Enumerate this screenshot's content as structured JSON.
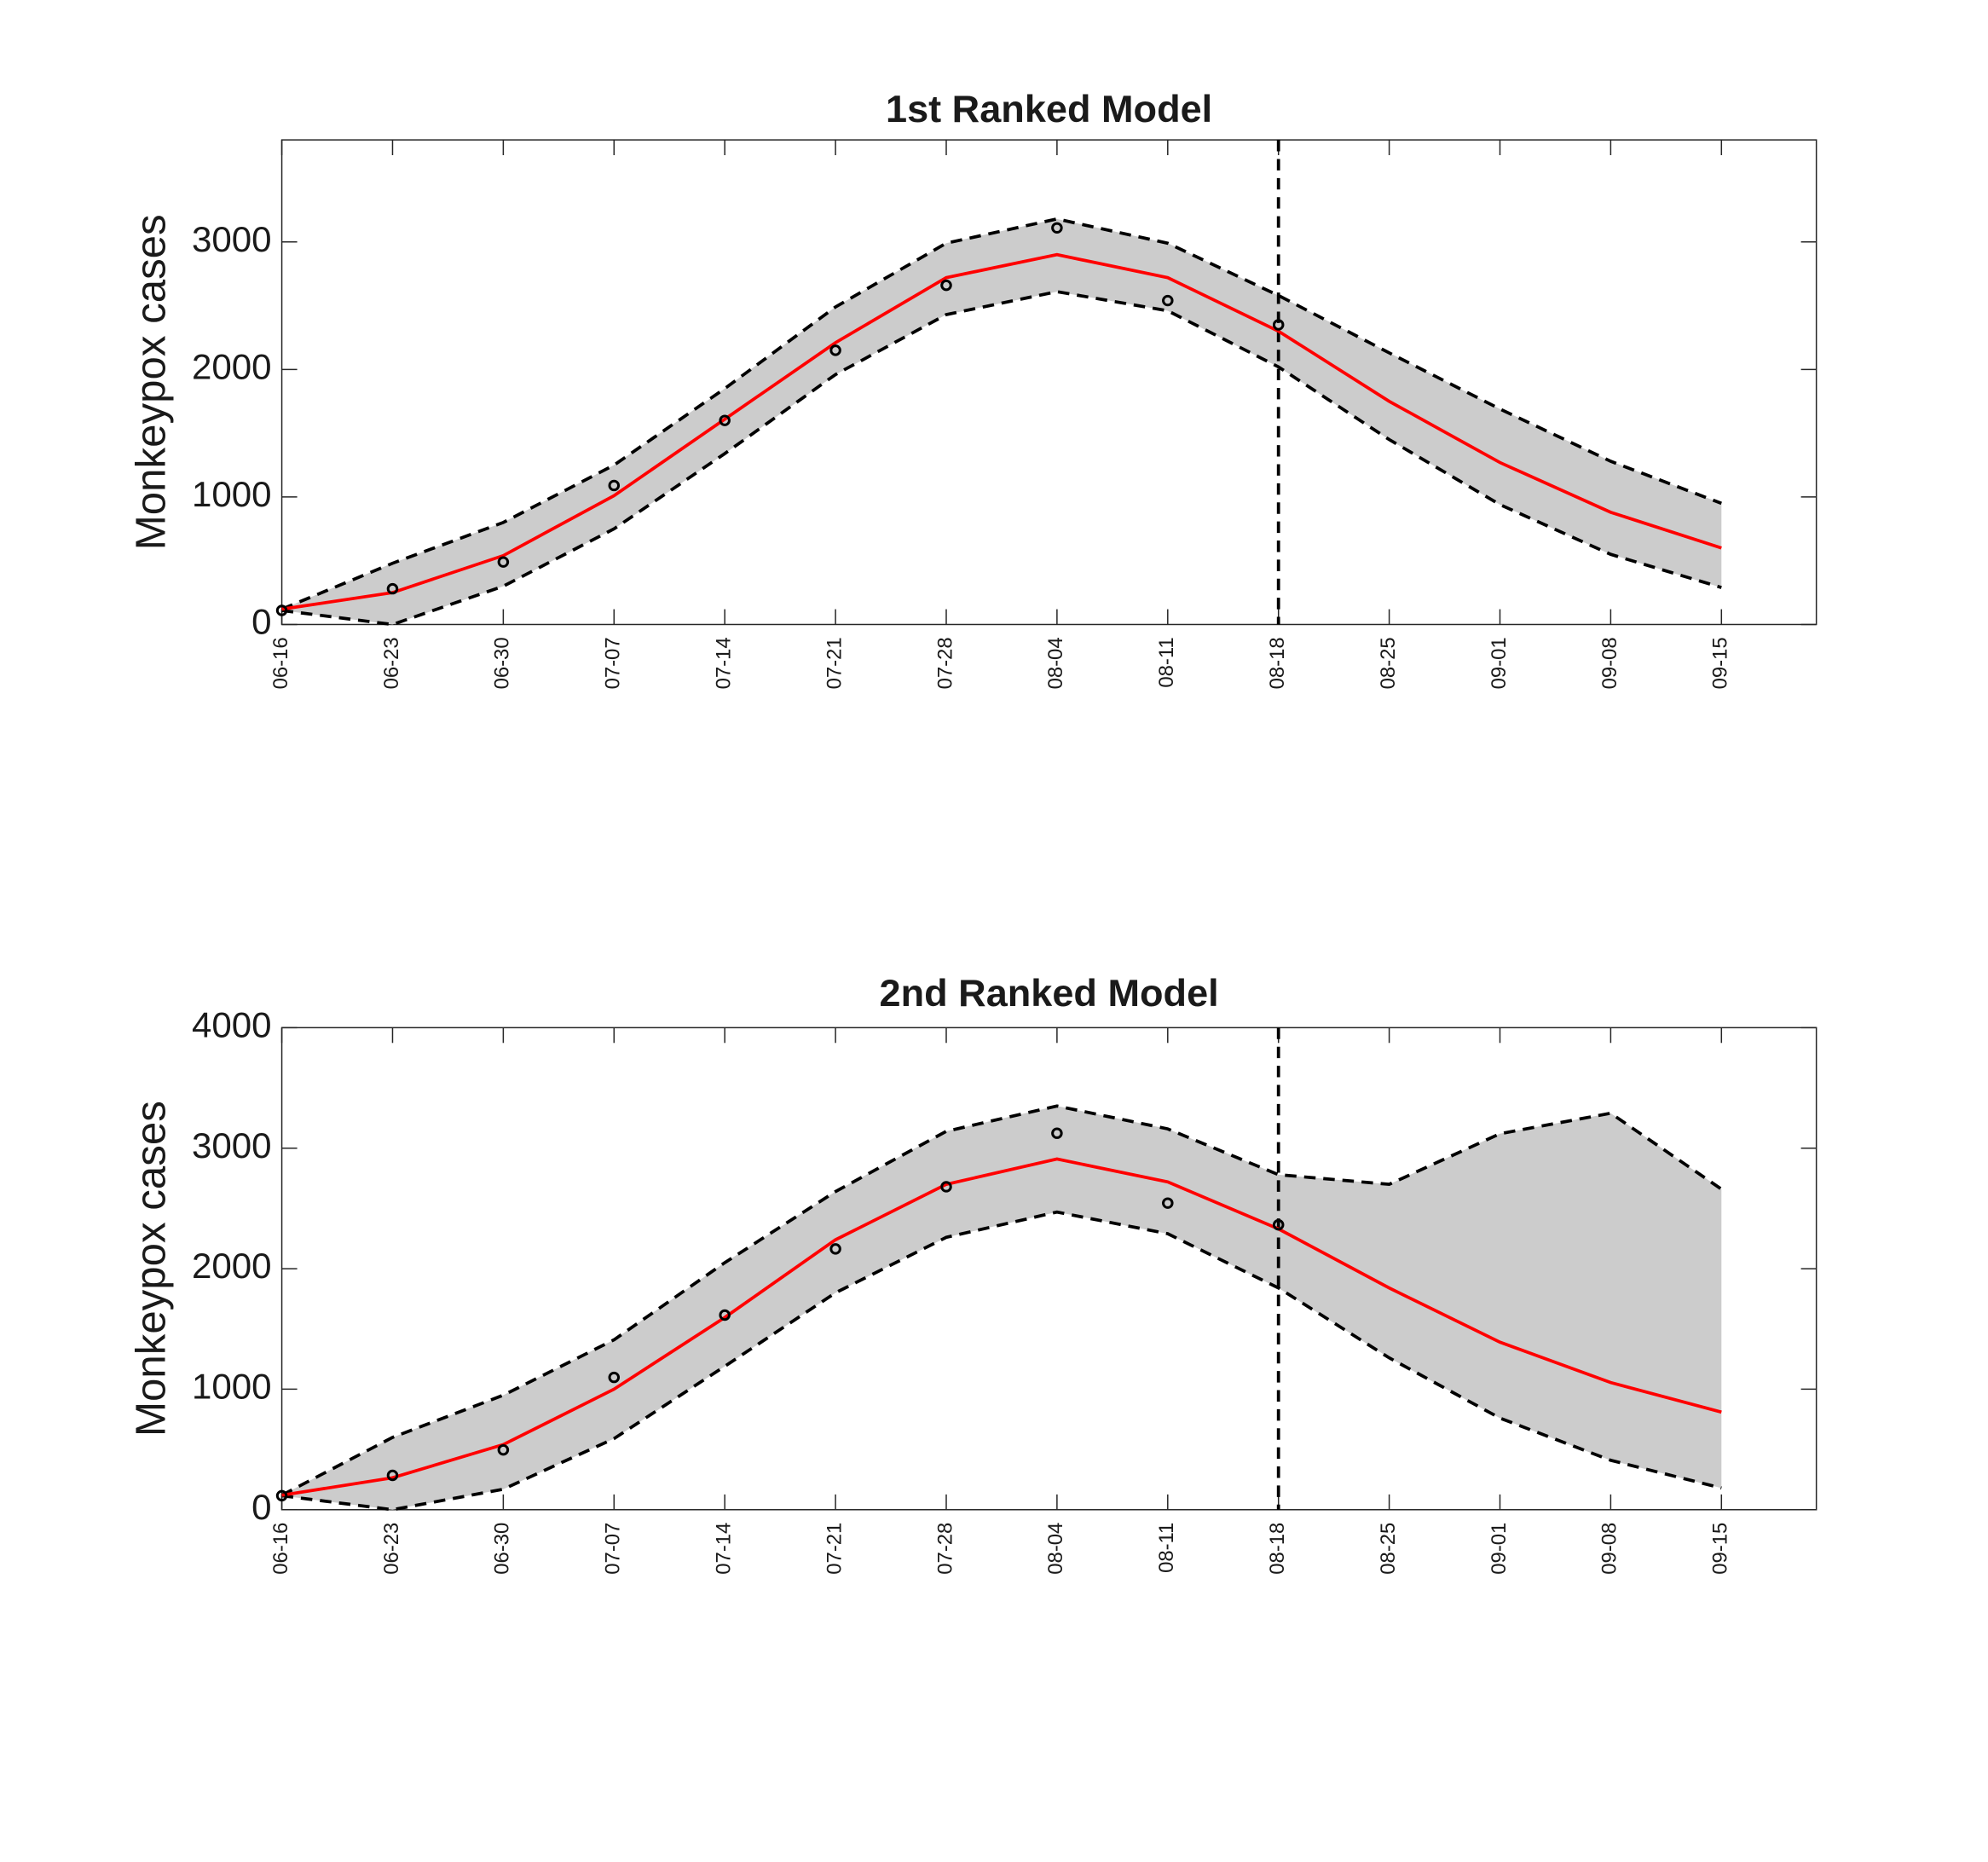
{
  "chart_data": [
    {
      "type": "line",
      "title": "1st Ranked Model",
      "y_label": "Monkeypox cases",
      "x": [
        "06-16",
        "06-23",
        "06-30",
        "07-07",
        "07-14",
        "07-21",
        "07-28",
        "08-04",
        "08-11",
        "08-18",
        "08-25",
        "09-01",
        "09-08",
        "09-15"
      ],
      "xlim": [
        "06-16",
        "09-21"
      ],
      "observed": [
        110,
        280,
        490,
        1090,
        1600,
        2150,
        2660,
        3110,
        2540,
        2350,
        null,
        null,
        null,
        null
      ],
      "fit": [
        120,
        250,
        540,
        1010,
        1610,
        2210,
        2720,
        2900,
        2720,
        2300,
        1750,
        1270,
        880,
        600
      ],
      "upper": [
        120,
        480,
        800,
        1250,
        1850,
        2490,
        2990,
        3180,
        2990,
        2580,
        2130,
        1690,
        1280,
        950
      ],
      "lower": [
        110,
        0,
        300,
        750,
        1340,
        1960,
        2430,
        2610,
        2460,
        2020,
        1450,
        940,
        550,
        290
      ],
      "fit_color": "#ff0000",
      "band_color": "#cccccc",
      "observed_color": "#000000",
      "vline": "08-18",
      "ylim": [
        0,
        3800
      ],
      "yticks": [
        0,
        1000,
        2000,
        3000
      ],
      "grid": false
    },
    {
      "type": "line",
      "title": "2nd Ranked Model",
      "y_label": "Monkeypox cases",
      "x": [
        "06-16",
        "06-23",
        "06-30",
        "07-07",
        "07-14",
        "07-21",
        "07-28",
        "08-04",
        "08-11",
        "08-18",
        "08-25",
        "09-01",
        "09-08",
        "09-15"
      ],
      "xlim": [
        "06-16",
        "09-21"
      ],
      "observed": [
        116,
        285,
        496,
        1098,
        1615,
        2164,
        2680,
        3124,
        2544,
        2364,
        null,
        null,
        null,
        null
      ],
      "fit": [
        120,
        265,
        540,
        1000,
        1595,
        2240,
        2700,
        2910,
        2720,
        2330,
        1840,
        1390,
        1055,
        810
      ],
      "upper": [
        120,
        600,
        950,
        1410,
        2050,
        2640,
        3140,
        3350,
        3160,
        2780,
        2700,
        3120,
        3290,
        2660
      ],
      "lower": [
        116,
        0,
        170,
        590,
        1190,
        1800,
        2260,
        2470,
        2290,
        1840,
        1260,
        760,
        410,
        180
      ],
      "fit_color": "#ff0000",
      "band_color": "#cccccc",
      "observed_color": "#000000",
      "vline": "08-18",
      "ylim": [
        0,
        4000
      ],
      "yticks": [
        0,
        1000,
        2000,
        3000,
        4000
      ],
      "grid": false
    }
  ]
}
